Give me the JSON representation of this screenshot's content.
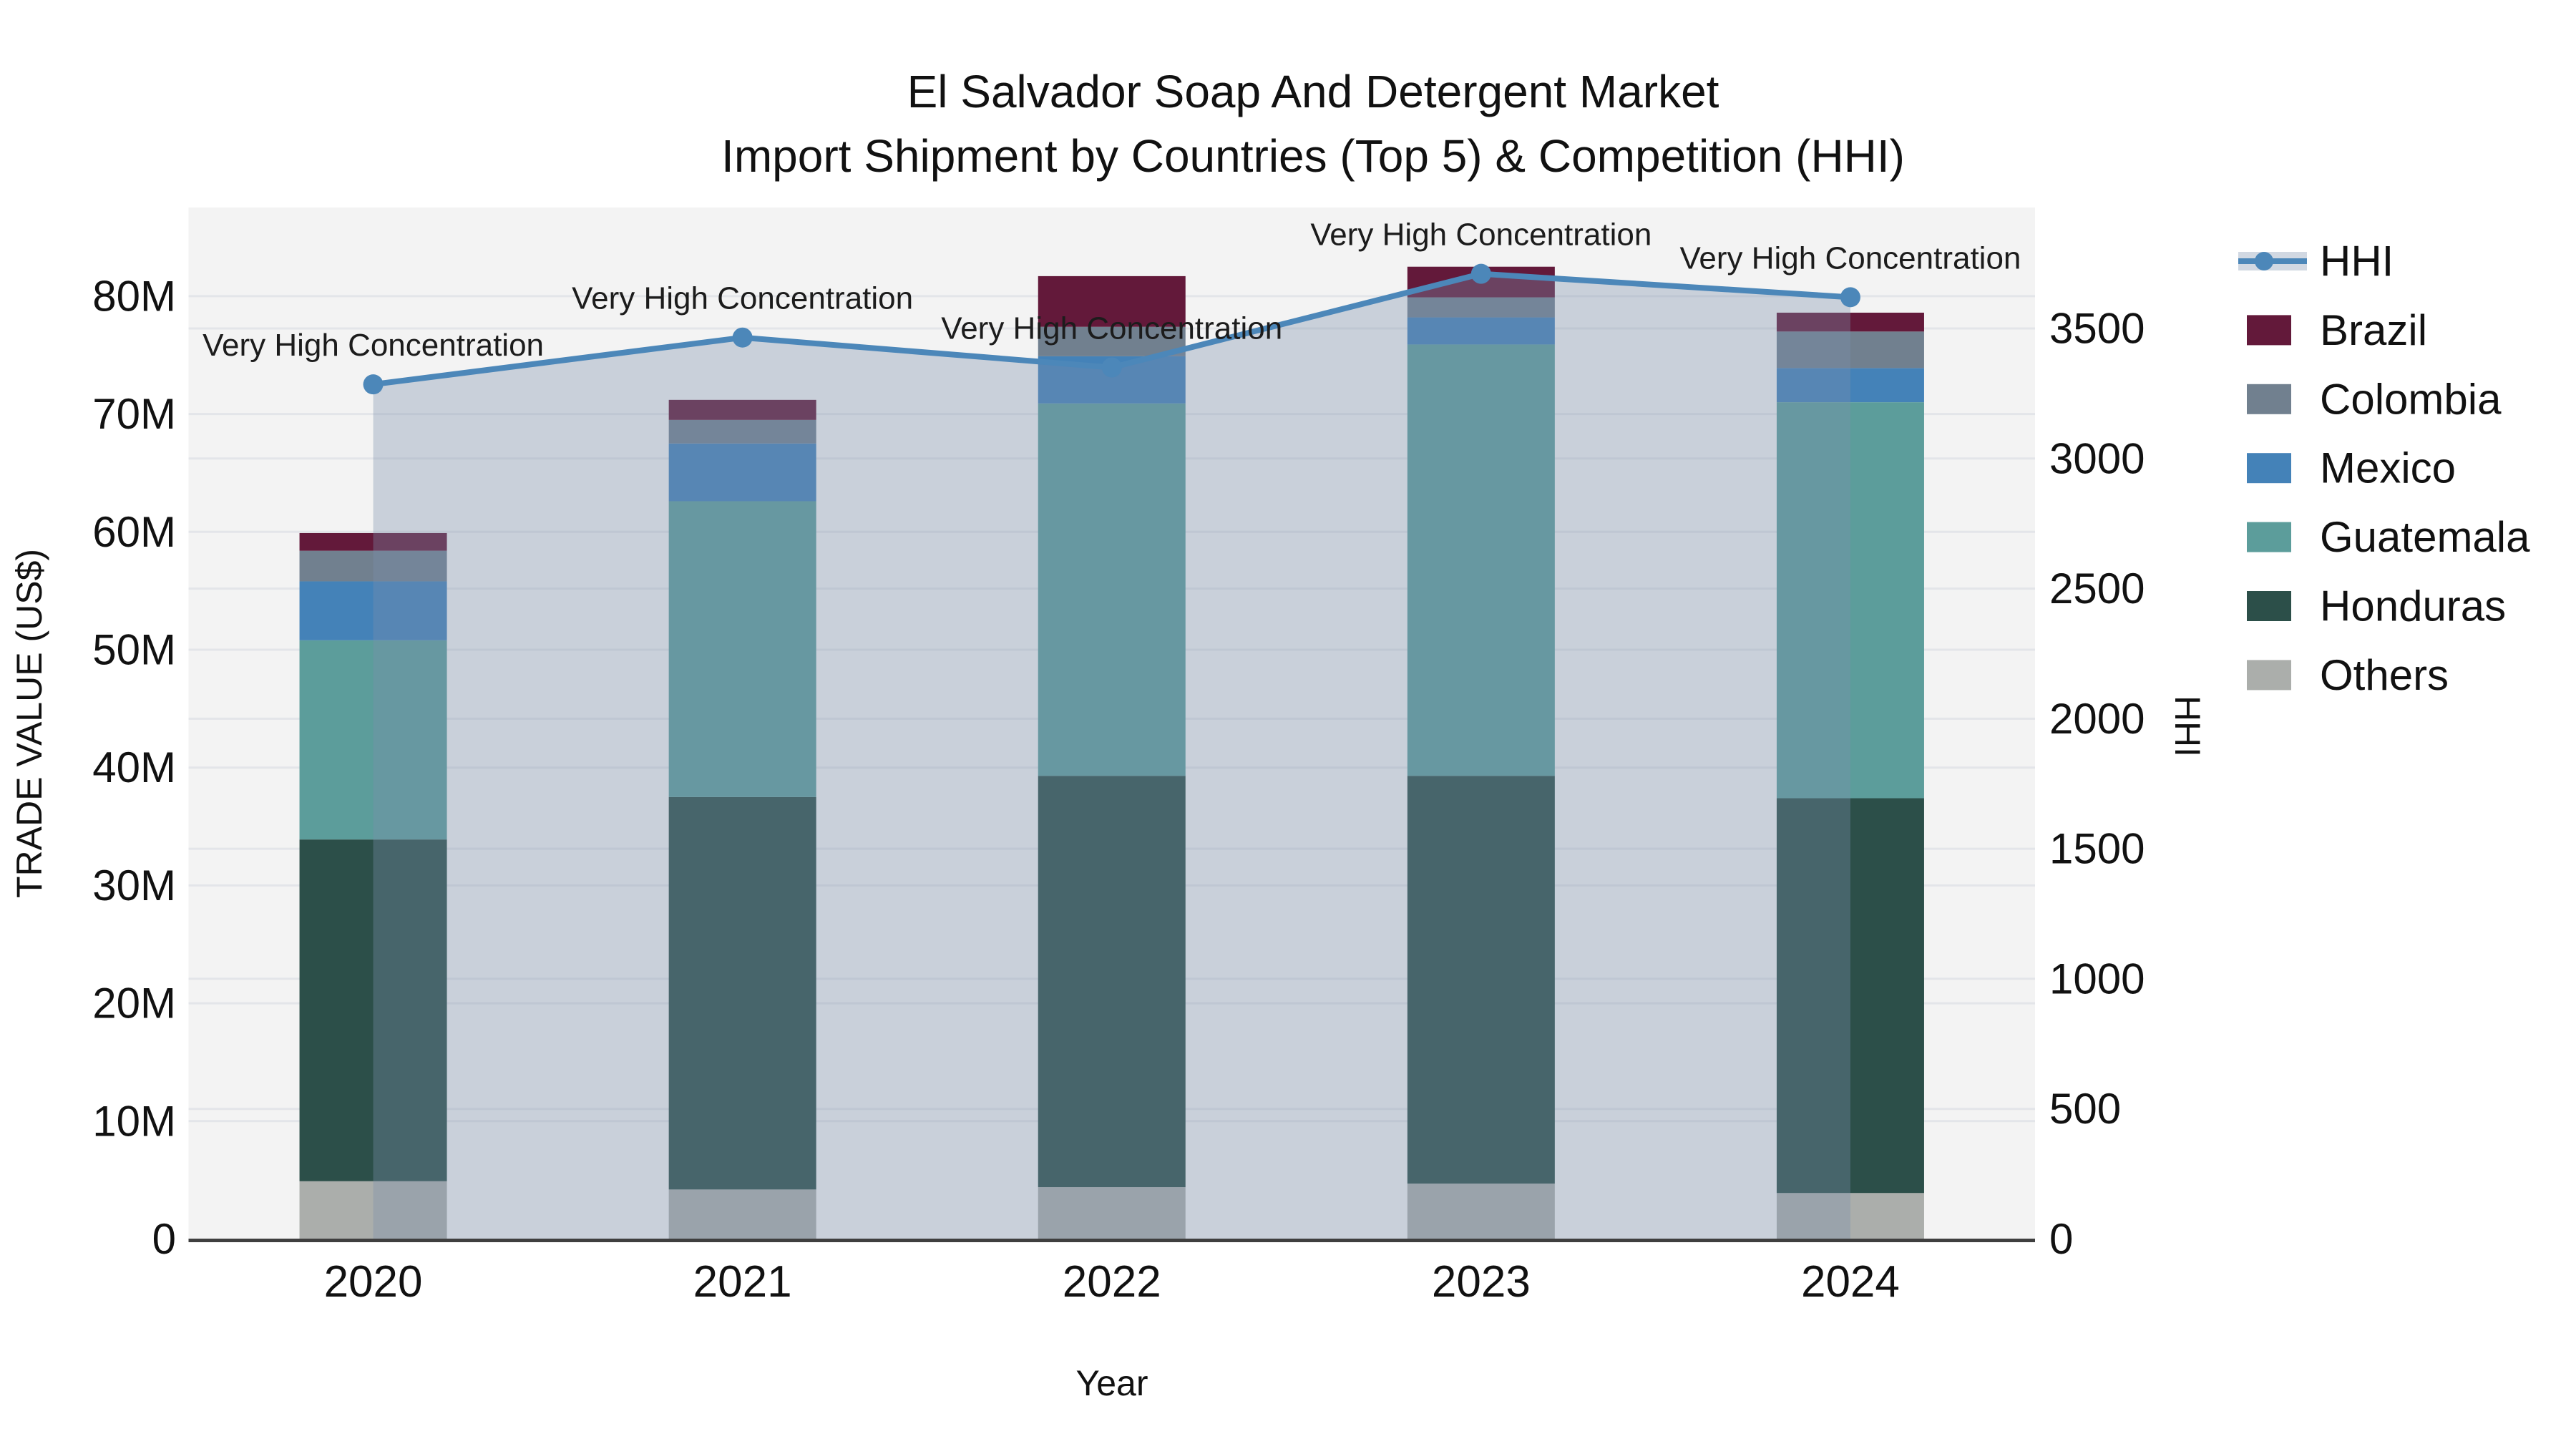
{
  "title": {
    "line1": "El Salvador Soap And Detergent Market",
    "line2": "Import Shipment by Countries (Top 5) & Competition (HHI)"
  },
  "axes": {
    "x": {
      "title": "Year",
      "tick_labels": [
        "2020",
        "2021",
        "2022",
        "2023",
        "2024"
      ]
    },
    "left": {
      "title": "TRADE VALUE (US$)",
      "tick_labels": [
        "0",
        "10M",
        "20M",
        "30M",
        "40M",
        "50M",
        "60M",
        "70M",
        "80M"
      ],
      "tick_values": [
        0,
        10,
        20,
        30,
        40,
        50,
        60,
        70,
        80
      ]
    },
    "right": {
      "title": "HHI",
      "tick_labels": [
        "0",
        "500",
        "1000",
        "1500",
        "2000",
        "2500",
        "3000",
        "3500"
      ],
      "tick_values": [
        0,
        500,
        1000,
        1500,
        2000,
        2500,
        3000,
        3500
      ]
    }
  },
  "legend": {
    "items": [
      {
        "label": "HHI",
        "type": "line",
        "color": "#4C87B9"
      },
      {
        "label": "Brazil",
        "type": "swatch",
        "color": "#63193A"
      },
      {
        "label": "Colombia",
        "type": "swatch",
        "color": "#71808F"
      },
      {
        "label": "Mexico",
        "type": "swatch",
        "color": "#4482B8"
      },
      {
        "label": "Guatemala",
        "type": "swatch",
        "color": "#5C9D9B"
      },
      {
        "label": "Honduras",
        "type": "swatch",
        "color": "#2C4F49"
      },
      {
        "label": "Others",
        "type": "swatch",
        "color": "#ABAEAB"
      }
    ]
  },
  "chart_data": {
    "type": "bar",
    "subtype": "stacked bars with overlaid line on secondary axis",
    "title": "El Salvador Soap And Detergent Market — Import Shipment by Countries (Top 5) & Competition (HHI)",
    "xlabel": "Year",
    "ylabel_left": "TRADE VALUE (US$)",
    "ylabel_right": "HHI",
    "categories": [
      "2020",
      "2021",
      "2022",
      "2023",
      "2024"
    ],
    "bar_value_unit": "million US$",
    "stack_order_bottom_to_top": [
      "Others",
      "Honduras",
      "Guatemala",
      "Mexico",
      "Colombia",
      "Brazil"
    ],
    "series": [
      {
        "name": "Others",
        "color": "#ABAEAB",
        "values": [
          4.9,
          4.2,
          4.4,
          4.7,
          3.9
        ]
      },
      {
        "name": "Honduras",
        "color": "#2C4F49",
        "values": [
          29.0,
          33.3,
          34.9,
          34.6,
          33.5
        ]
      },
      {
        "name": "Guatemala",
        "color": "#5C9D9B",
        "values": [
          16.9,
          25.1,
          31.6,
          36.6,
          33.6
        ]
      },
      {
        "name": "Mexico",
        "color": "#4482B8",
        "values": [
          5.0,
          4.9,
          4.0,
          2.3,
          2.9
        ]
      },
      {
        "name": "Colombia",
        "color": "#71808F",
        "values": [
          2.6,
          2.0,
          2.5,
          1.7,
          3.1
        ]
      },
      {
        "name": "Brazil",
        "color": "#63193A",
        "values": [
          1.5,
          1.7,
          4.3,
          2.6,
          1.6
        ]
      }
    ],
    "stack_totals": [
      59.9,
      71.2,
      81.7,
      82.5,
      78.6
    ],
    "line_series": {
      "name": "HHI",
      "axis": "right",
      "color": "#4C87B9",
      "fill_color": "rgba(122,143,172,0.35)",
      "values": [
        3285,
        3465,
        3350,
        3710,
        3620
      ]
    },
    "annotations": [
      {
        "x": "2020",
        "text": "Very High Concentration"
      },
      {
        "x": "2021",
        "text": "Very High Concentration"
      },
      {
        "x": "2022",
        "text": "Very High Concentration"
      },
      {
        "x": "2023",
        "text": "Very High Concentration"
      },
      {
        "x": "2024",
        "text": "Very High Concentration"
      }
    ],
    "ylim_left": [
      0,
      87.5
    ],
    "ylim_right": [
      0,
      3965
    ],
    "grid": true,
    "legend_position": "right"
  },
  "colors": {
    "plot_bg": "#F3F3F3",
    "grid": "#E3E5E9",
    "axis_line": "#3F3F3F",
    "area_fill": "rgba(122,143,172,0.35)",
    "hhi_line": "#4C87B9"
  }
}
